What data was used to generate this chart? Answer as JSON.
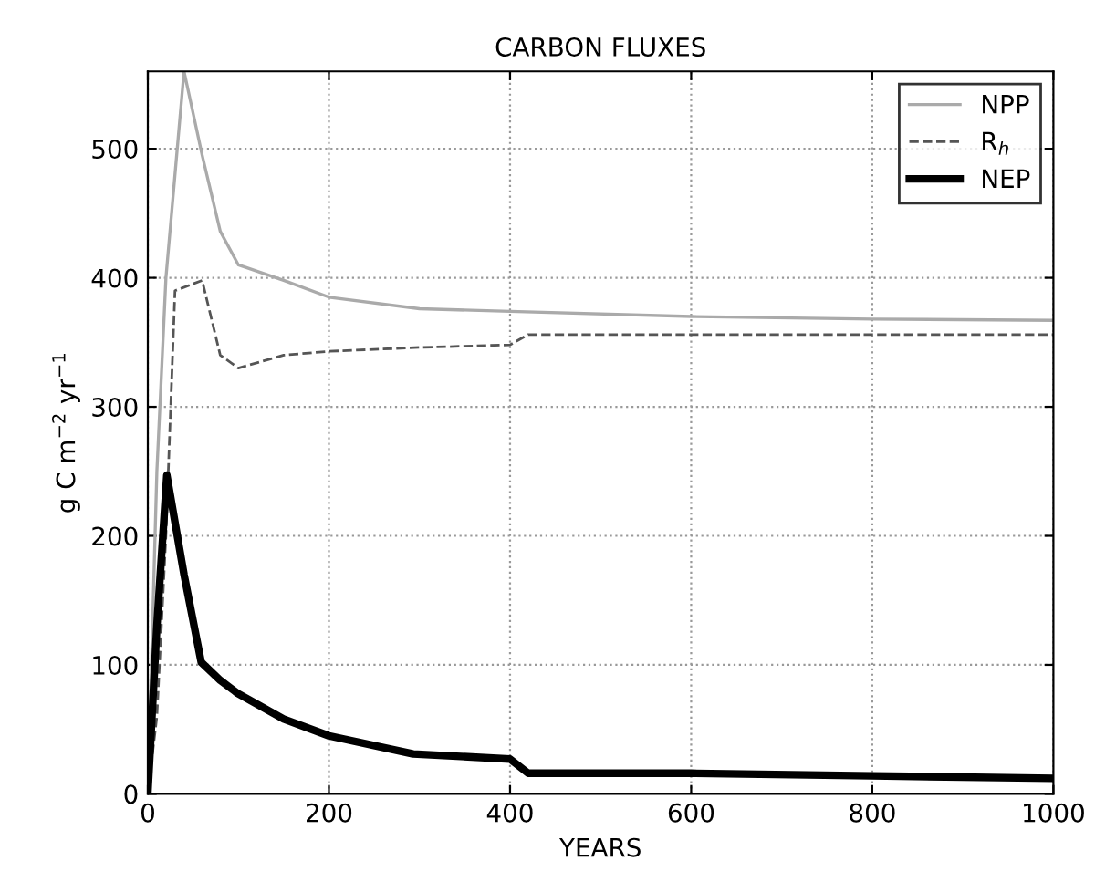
{
  "chart_data": {
    "type": "line",
    "title": "CARBON FLUXES",
    "xlabel": "YEARS",
    "ylabel": "g C m$^{−2}$ yr$^{−1}$",
    "xlim": [
      0,
      1000
    ],
    "ylim": [
      0,
      560
    ],
    "xticks": [
      0,
      200,
      400,
      600,
      800,
      1000
    ],
    "yticks": [
      0,
      100,
      200,
      300,
      400,
      500
    ],
    "grid": true,
    "legend": "top right",
    "marker": "none",
    "series": [
      {
        "name": "NPP",
        "color": "#aaaaaa",
        "line_style": "solid",
        "x": [
          0,
          10,
          20,
          40,
          60,
          80,
          100,
          150,
          200,
          300,
          400,
          600,
          800,
          1000
        ],
        "values": [
          0,
          250,
          400,
          560,
          495,
          436,
          410,
          398,
          385,
          376,
          374,
          370,
          368,
          367
        ]
      },
      {
        "name": "R$_{h}$",
        "color": "#555555",
        "line_style": "dashed",
        "x": [
          0,
          10,
          20,
          30,
          60,
          80,
          100,
          150,
          200,
          300,
          400,
          420,
          600,
          1000
        ],
        "values": [
          0,
          60,
          200,
          390,
          398,
          340,
          330,
          340,
          343,
          346,
          348,
          356,
          356,
          356
        ]
      },
      {
        "name": "NEP",
        "color": "#000000",
        "line_style": "solid",
        "x": [
          0,
          10,
          21,
          40,
          59,
          80,
          99,
          150,
          200,
          293,
          400,
          420,
          600,
          800,
          1000
        ],
        "values": [
          0,
          130,
          247,
          170,
          102,
          88,
          78,
          58,
          45,
          31,
          27,
          16,
          16,
          14,
          12
        ]
      }
    ]
  }
}
